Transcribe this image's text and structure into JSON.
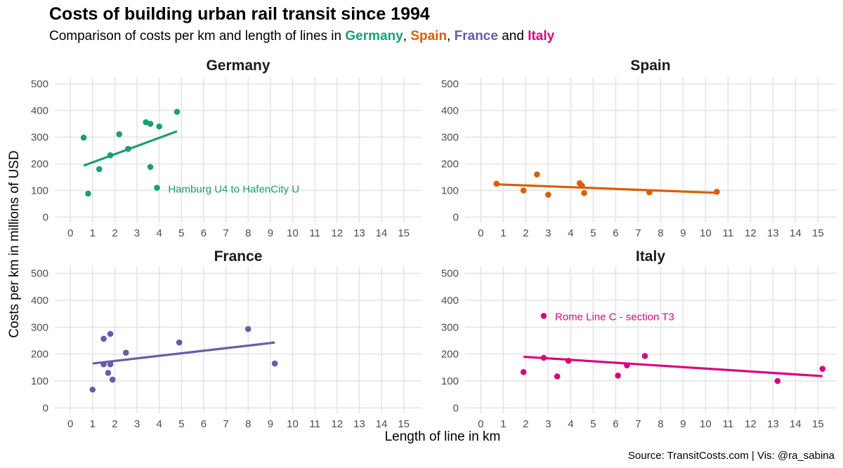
{
  "title": "Costs of building urban rail transit since 1994",
  "subtitle": {
    "prefix": "Comparison of costs per km and length of lines in ",
    "sep1": ", ",
    "sep2": ", ",
    "sep3": " and ",
    "countries": [
      "Germany",
      "Spain",
      "France",
      "Italy"
    ]
  },
  "caption": "Source: TransitCosts.com | Vis: @ra_sabina",
  "colors": {
    "Germany": "#1b9e77",
    "Spain": "#d95f02",
    "France": "#6a5ba8",
    "Italy": "#d6087f",
    "grid": "#e5e5e5"
  },
  "chart_data": {
    "type": "scatter",
    "facets": [
      "Germany",
      "Spain",
      "France",
      "Italy"
    ],
    "xlabel": "Length of line in km",
    "ylabel": "Costs per km in millions of USD",
    "xlim": [
      -0.7,
      15.8
    ],
    "ylim": [
      -20,
      525
    ],
    "x_ticks": [
      0,
      1,
      2,
      3,
      4,
      5,
      6,
      7,
      8,
      9,
      10,
      11,
      12,
      13,
      14,
      15
    ],
    "y_ticks": [
      0,
      100,
      200,
      300,
      400,
      500
    ],
    "grid": true,
    "trend": "linear fit line per facet",
    "series": [
      {
        "name": "Germany",
        "points": [
          [
            0.6,
            298
          ],
          [
            0.8,
            88
          ],
          [
            1.3,
            180
          ],
          [
            1.8,
            232
          ],
          [
            2.2,
            311
          ],
          [
            2.6,
            256
          ],
          [
            3.4,
            356
          ],
          [
            3.6,
            350
          ],
          [
            3.6,
            188
          ],
          [
            4.0,
            340
          ],
          [
            4.8,
            395
          ],
          [
            3.9,
            110
          ]
        ],
        "fit": [
          [
            0.6,
            193
          ],
          [
            4.8,
            322
          ]
        ],
        "annotation": {
          "text": "Hamburg U4 to HafenCity U",
          "x": 4.4,
          "y": 105
        }
      },
      {
        "name": "Spain",
        "points": [
          [
            0.7,
            125
          ],
          [
            1.9,
            100
          ],
          [
            2.5,
            160
          ],
          [
            3.0,
            84
          ],
          [
            4.4,
            127
          ],
          [
            4.5,
            118
          ],
          [
            4.6,
            90
          ],
          [
            7.5,
            93
          ],
          [
            10.5,
            95
          ]
        ],
        "fit": [
          [
            0.7,
            123
          ],
          [
            10.5,
            91
          ]
        ]
      },
      {
        "name": "France",
        "points": [
          [
            1.0,
            68
          ],
          [
            1.5,
            257
          ],
          [
            1.5,
            162
          ],
          [
            1.7,
            130
          ],
          [
            1.8,
            275
          ],
          [
            1.8,
            162
          ],
          [
            1.9,
            105
          ],
          [
            2.5,
            205
          ],
          [
            4.9,
            243
          ],
          [
            8.0,
            293
          ],
          [
            9.2,
            165
          ]
        ],
        "fit": [
          [
            1.0,
            165
          ],
          [
            9.2,
            243
          ]
        ]
      },
      {
        "name": "Italy",
        "points": [
          [
            1.9,
            133
          ],
          [
            2.8,
            186
          ],
          [
            3.4,
            117
          ],
          [
            3.9,
            175
          ],
          [
            6.1,
            120
          ],
          [
            6.5,
            158
          ],
          [
            7.3,
            193
          ],
          [
            13.2,
            100
          ],
          [
            15.2,
            145
          ],
          [
            2.8,
            342
          ]
        ],
        "fit": [
          [
            1.9,
            190
          ],
          [
            15.2,
            118
          ]
        ],
        "annotation": {
          "text": "Rome Line C - section T3",
          "x": 3.3,
          "y": 338
        }
      }
    ]
  }
}
